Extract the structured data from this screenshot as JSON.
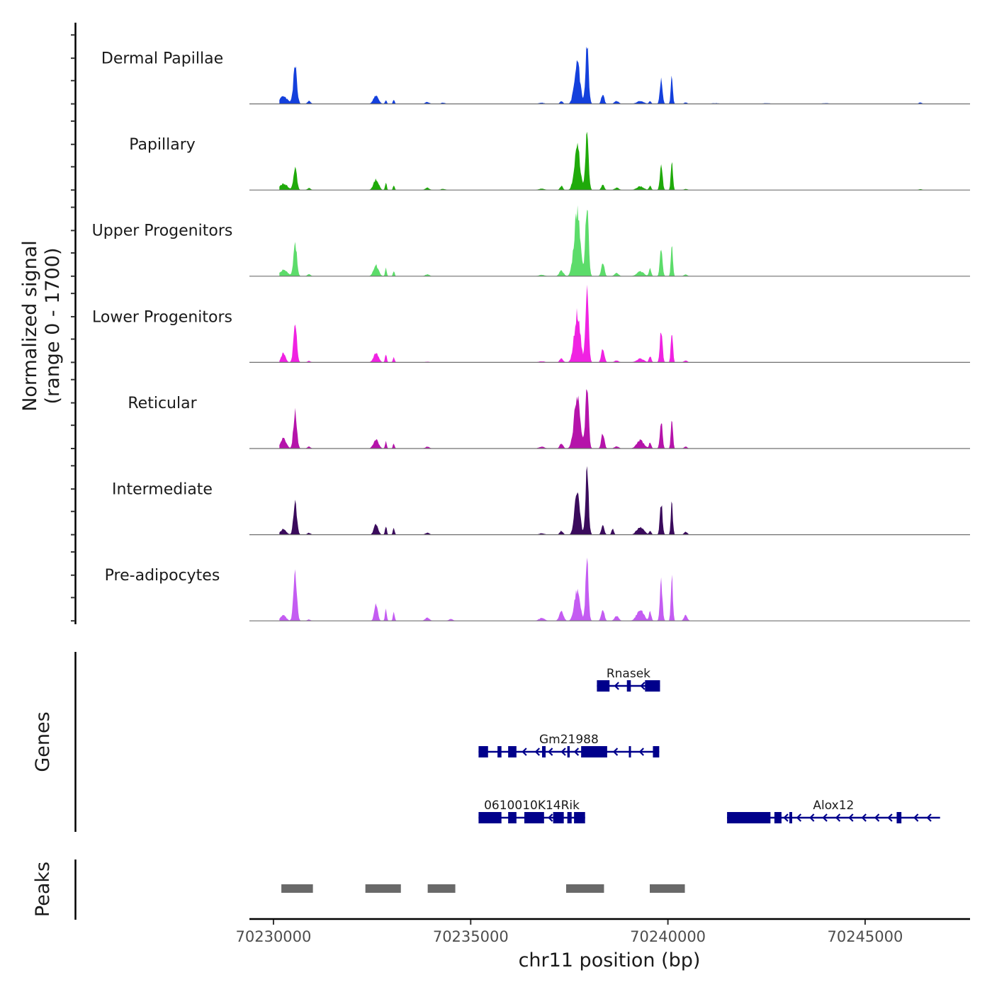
{
  "chart_data": {
    "type": "area",
    "title": "",
    "xlabel": "chr11 position (bp)",
    "ylabel": "Normalized signal\n(range 0 - 1700)",
    "ylabel_lines": [
      "Normalized signal",
      "(range 0 - 1700)"
    ],
    "ylim": [
      0,
      1700
    ],
    "xlim": [
      70229390,
      70247660
    ],
    "x_ticks": [
      70230000,
      70235000,
      70240000,
      70245000
    ],
    "x_tick_labels": [
      "70230000",
      "70235000",
      "70240000",
      "70245000"
    ],
    "grid": false,
    "series": [
      {
        "name": "Dermal Papillae",
        "color": "#1440DC",
        "peaks": [
          [
            70230250,
            150,
            300
          ],
          [
            70230550,
            780,
            130
          ],
          [
            70230900,
            60,
            120
          ],
          [
            70232600,
            190,
            180
          ],
          [
            70232850,
            90,
            60
          ],
          [
            70233050,
            90,
            60
          ],
          [
            70233900,
            40,
            150
          ],
          [
            70234300,
            25,
            150
          ],
          [
            70236800,
            25,
            200
          ],
          [
            70237300,
            60,
            100
          ],
          [
            70237700,
            900,
            200
          ],
          [
            70237950,
            1300,
            110
          ],
          [
            70238350,
            220,
            100
          ],
          [
            70238700,
            60,
            150
          ],
          [
            70239300,
            60,
            250
          ],
          [
            70239550,
            60,
            80
          ],
          [
            70239830,
            580,
            90
          ],
          [
            70240100,
            590,
            70
          ],
          [
            70240450,
            30,
            120
          ],
          [
            70241200,
            15,
            300
          ],
          [
            70242500,
            15,
            300
          ],
          [
            70244000,
            15,
            300
          ],
          [
            70246400,
            30,
            120
          ]
        ]
      },
      {
        "name": "Papillary",
        "color": "#1FAA0A",
        "peaks": [
          [
            70230250,
            130,
            300
          ],
          [
            70230550,
            500,
            120
          ],
          [
            70230900,
            40,
            120
          ],
          [
            70232600,
            230,
            180
          ],
          [
            70232850,
            160,
            60
          ],
          [
            70233050,
            100,
            60
          ],
          [
            70233900,
            50,
            150
          ],
          [
            70234300,
            25,
            150
          ],
          [
            70236800,
            30,
            200
          ],
          [
            70237300,
            90,
            100
          ],
          [
            70237700,
            950,
            200
          ],
          [
            70237950,
            1180,
            110
          ],
          [
            70238350,
            130,
            100
          ],
          [
            70238700,
            50,
            150
          ],
          [
            70239300,
            80,
            250
          ],
          [
            70239550,
            90,
            80
          ],
          [
            70239830,
            580,
            90
          ],
          [
            70240100,
            640,
            70
          ],
          [
            70240450,
            25,
            120
          ],
          [
            70246400,
            20,
            120
          ]
        ]
      },
      {
        "name": "Upper Progenitors",
        "color": "#5CDC6A",
        "peaks": [
          [
            70230250,
            130,
            300
          ],
          [
            70230550,
            720,
            120
          ],
          [
            70230900,
            40,
            120
          ],
          [
            70232600,
            230,
            180
          ],
          [
            70232850,
            170,
            60
          ],
          [
            70233050,
            110,
            60
          ],
          [
            70233900,
            40,
            150
          ],
          [
            70236800,
            30,
            200
          ],
          [
            70237300,
            120,
            150
          ],
          [
            70237700,
            1350,
            220
          ],
          [
            70237950,
            1550,
            110
          ],
          [
            70238350,
            300,
            110
          ],
          [
            70238700,
            70,
            150
          ],
          [
            70239300,
            100,
            250
          ],
          [
            70239550,
            160,
            80
          ],
          [
            70239830,
            610,
            90
          ],
          [
            70240100,
            640,
            70
          ],
          [
            70240450,
            40,
            120
          ]
        ]
      },
      {
        "name": "Lower Progenitors",
        "color": "#F022E2",
        "peaks": [
          [
            70230250,
            200,
            150
          ],
          [
            70230550,
            780,
            120
          ],
          [
            70230900,
            30,
            120
          ],
          [
            70232600,
            190,
            180
          ],
          [
            70232850,
            180,
            60
          ],
          [
            70233050,
            120,
            60
          ],
          [
            70233900,
            15,
            150
          ],
          [
            70236800,
            25,
            200
          ],
          [
            70237300,
            90,
            120
          ],
          [
            70237700,
            1050,
            210
          ],
          [
            70237950,
            1560,
            110
          ],
          [
            70238350,
            300,
            110
          ],
          [
            70238700,
            40,
            150
          ],
          [
            70239300,
            80,
            250
          ],
          [
            70239550,
            140,
            80
          ],
          [
            70239830,
            680,
            90
          ],
          [
            70240100,
            730,
            70
          ],
          [
            70240450,
            40,
            120
          ]
        ]
      },
      {
        "name": "Reticular",
        "color": "#B513AA",
        "peaks": [
          [
            70230250,
            220,
            200
          ],
          [
            70230550,
            820,
            120
          ],
          [
            70230900,
            40,
            120
          ],
          [
            70232600,
            200,
            180
          ],
          [
            70232850,
            160,
            60
          ],
          [
            70233050,
            110,
            60
          ],
          [
            70233900,
            40,
            150
          ],
          [
            70236800,
            40,
            200
          ],
          [
            70237300,
            110,
            120
          ],
          [
            70237700,
            1080,
            220
          ],
          [
            70237950,
            1350,
            110
          ],
          [
            70238350,
            320,
            110
          ],
          [
            70238700,
            50,
            150
          ],
          [
            70239300,
            180,
            250
          ],
          [
            70239550,
            130,
            80
          ],
          [
            70239830,
            610,
            90
          ],
          [
            70240100,
            660,
            70
          ],
          [
            70240450,
            40,
            120
          ]
        ]
      },
      {
        "name": "Intermediate",
        "color": "#3A0B5C",
        "peaks": [
          [
            70230250,
            120,
            200
          ],
          [
            70230550,
            690,
            120
          ],
          [
            70230900,
            40,
            120
          ],
          [
            70232600,
            220,
            150
          ],
          [
            70232850,
            200,
            60
          ],
          [
            70233050,
            150,
            60
          ],
          [
            70233900,
            40,
            150
          ],
          [
            70236800,
            30,
            200
          ],
          [
            70237300,
            80,
            120
          ],
          [
            70237700,
            910,
            180
          ],
          [
            70237950,
            1370,
            110
          ],
          [
            70238350,
            230,
            100
          ],
          [
            70238600,
            130,
            80
          ],
          [
            70239300,
            170,
            250
          ],
          [
            70239550,
            80,
            80
          ],
          [
            70239830,
            690,
            90
          ],
          [
            70240100,
            710,
            70
          ],
          [
            70240450,
            60,
            120
          ]
        ]
      },
      {
        "name": "Pre-adipocytes",
        "color": "#C45CF2",
        "peaks": [
          [
            70230250,
            120,
            200
          ],
          [
            70230550,
            1000,
            120
          ],
          [
            70230900,
            30,
            120
          ],
          [
            70232600,
            380,
            120
          ],
          [
            70232850,
            270,
            60
          ],
          [
            70233050,
            200,
            60
          ],
          [
            70233900,
            70,
            150
          ],
          [
            70234500,
            40,
            150
          ],
          [
            70236800,
            60,
            200
          ],
          [
            70237300,
            200,
            150
          ],
          [
            70237700,
            650,
            200
          ],
          [
            70237950,
            1460,
            100
          ],
          [
            70238350,
            250,
            110
          ],
          [
            70238700,
            100,
            150
          ],
          [
            70239300,
            240,
            250
          ],
          [
            70239550,
            200,
            80
          ],
          [
            70239830,
            820,
            90
          ],
          [
            70240100,
            990,
            70
          ],
          [
            70240450,
            120,
            120
          ]
        ]
      }
    ],
    "genes": [
      {
        "name": "Rnasek",
        "strand": "-",
        "row": 0,
        "start": 70238200,
        "end": 70239800,
        "exons": [
          [
            70238200,
            70238520
          ],
          [
            70238960,
            70239060
          ],
          [
            70239420,
            70239800
          ]
        ]
      },
      {
        "name": "Gm21988",
        "strand": "-",
        "row": 1,
        "start": 70235200,
        "end": 70239780,
        "exons": [
          [
            70235200,
            70235440
          ],
          [
            70235680,
            70235780
          ],
          [
            70235950,
            70236160
          ],
          [
            70236810,
            70236900
          ],
          [
            70237450,
            70237510
          ],
          [
            70237800,
            70238460
          ],
          [
            70239010,
            70239060
          ],
          [
            70239620,
            70239780
          ]
        ]
      },
      {
        "name": "0610010K14Rik",
        "strand": "-",
        "row": 2,
        "start": 70235200,
        "end": 70237900,
        "exons": [
          [
            70235200,
            70235780
          ],
          [
            70235950,
            70236160
          ],
          [
            70236360,
            70236860
          ],
          [
            70237090,
            70237360
          ],
          [
            70237450,
            70237560
          ],
          [
            70237620,
            70237900
          ]
        ]
      },
      {
        "name": "Alox12",
        "strand": "-",
        "row": 2,
        "start": 70241500,
        "end": 70246900,
        "exons": [
          [
            70241500,
            70242600
          ],
          [
            70242700,
            70242880
          ],
          [
            70243080,
            70243150
          ],
          [
            70245800,
            70245920
          ]
        ]
      }
    ],
    "peaks_track": [
      [
        70230200,
        70231000
      ],
      [
        70232330,
        70233230
      ],
      [
        70233910,
        70234610
      ],
      [
        70237420,
        70238380
      ],
      [
        70239540,
        70240430
      ]
    ],
    "panel_labels": {
      "genes": "Genes",
      "peaks": "Peaks"
    },
    "colors": {
      "gene": "#00008B",
      "peak": "#696969",
      "axis": "#000000",
      "baseline": "#707070"
    }
  }
}
